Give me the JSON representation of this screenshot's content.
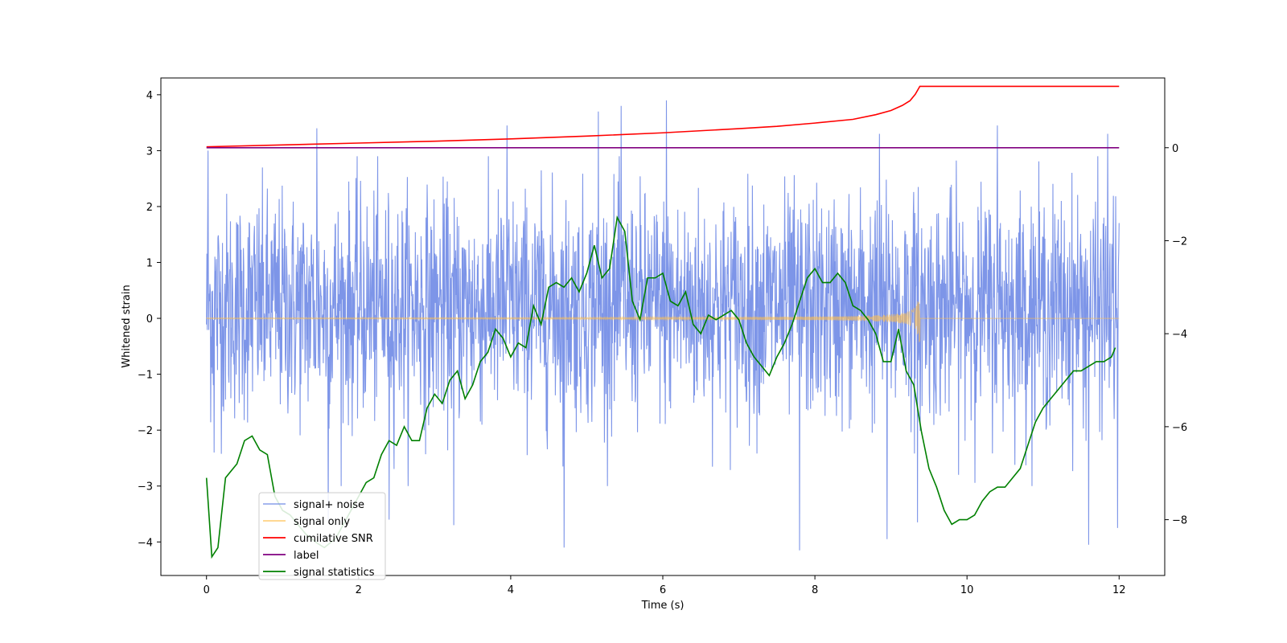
{
  "chart_data": {
    "type": "line",
    "title": "",
    "xlabel": "Time (s)",
    "ylabel": "Whitened strain",
    "y2label": "",
    "xlim": [
      -0.6,
      12.6
    ],
    "ylim": [
      -4.6,
      4.3
    ],
    "y2lim": [
      -9.2,
      1.5
    ],
    "x_ticks": [
      0,
      2,
      4,
      6,
      8,
      10,
      12
    ],
    "y_ticks": [
      -4,
      -3,
      -2,
      -1,
      0,
      1,
      2,
      3,
      4
    ],
    "y2_ticks": [
      -8,
      -6,
      -4,
      -2,
      0
    ],
    "legend_position": "lower-left",
    "grid": false,
    "series": [
      {
        "name": "signal+ noise",
        "axis": "left",
        "color": "#6f8ae6",
        "style": "dense noise, approx. range -4.2 to 3.9",
        "t_range": [
          0,
          12
        ],
        "peaks": [
          [
            0.02,
            3.0
          ],
          [
            1.45,
            3.4
          ],
          [
            3.25,
            3.75
          ],
          [
            3.95,
            3.45
          ],
          [
            5.15,
            3.7
          ],
          [
            5.45,
            3.8
          ],
          [
            6.05,
            3.9
          ],
          [
            8.85,
            3.3
          ],
          [
            10.4,
            3.45
          ],
          [
            11.85,
            3.3
          ]
        ],
        "troughs": [
          [
            0.1,
            -2.4
          ],
          [
            1.6,
            -3.6
          ],
          [
            2.4,
            -3.6
          ],
          [
            3.25,
            -3.7
          ],
          [
            4.7,
            -4.1
          ],
          [
            7.8,
            -4.15
          ],
          [
            8.95,
            -3.95
          ],
          [
            9.35,
            -3.65
          ],
          [
            11.6,
            -4.05
          ],
          [
            11.98,
            -3.75
          ]
        ]
      },
      {
        "name": "signal only",
        "axis": "left",
        "color": "#ffc04d",
        "style": "chirp, zero until ~8.5 s, grows to ±0.7 at 9.38 s, then zero",
        "chirp_end": 9.38,
        "chirp_peak_amplitude": 0.7
      },
      {
        "name": "cumilative SNR",
        "axis": "right",
        "color": "#ff0000",
        "x": [
          0,
          1,
          2,
          3,
          4,
          5,
          6,
          7,
          7.5,
          8,
          8.5,
          8.8,
          9.0,
          9.15,
          9.25,
          9.32,
          9.38,
          10,
          11,
          12
        ],
        "values": [
          0.02,
          0.06,
          0.1,
          0.14,
          0.19,
          0.25,
          0.32,
          0.41,
          0.46,
          0.53,
          0.61,
          0.71,
          0.8,
          0.91,
          1.01,
          1.15,
          1.32,
          1.32,
          1.32,
          1.32
        ]
      },
      {
        "name": "label",
        "axis": "right",
        "color": "#800080",
        "x": [
          0,
          12
        ],
        "values": [
          0,
          0
        ]
      },
      {
        "name": "signal statistics",
        "axis": "right",
        "color": "#008000",
        "x": [
          0,
          0.07,
          0.15,
          0.25,
          0.4,
          0.5,
          0.6,
          0.7,
          0.8,
          0.9,
          1.0,
          1.1,
          1.2,
          1.3,
          1.45,
          1.55,
          1.7,
          1.8,
          1.9,
          2.0,
          2.1,
          2.2,
          2.3,
          2.4,
          2.5,
          2.6,
          2.7,
          2.8,
          2.9,
          3.0,
          3.1,
          3.2,
          3.3,
          3.4,
          3.5,
          3.6,
          3.7,
          3.8,
          3.9,
          4.0,
          4.1,
          4.2,
          4.3,
          4.4,
          4.5,
          4.6,
          4.7,
          4.8,
          4.9,
          5.0,
          5.1,
          5.2,
          5.3,
          5.4,
          5.5,
          5.6,
          5.7,
          5.8,
          5.9,
          6.0,
          6.1,
          6.2,
          6.3,
          6.4,
          6.5,
          6.6,
          6.7,
          6.8,
          6.9,
          7.0,
          7.1,
          7.2,
          7.3,
          7.4,
          7.5,
          7.6,
          7.7,
          7.8,
          7.9,
          8.0,
          8.1,
          8.2,
          8.3,
          8.4,
          8.5,
          8.6,
          8.7,
          8.8,
          8.9,
          9.0,
          9.1,
          9.2,
          9.3,
          9.4,
          9.5,
          9.6,
          9.7,
          9.8,
          9.9,
          10.0,
          10.1,
          10.2,
          10.3,
          10.4,
          10.5,
          10.6,
          10.7,
          10.8,
          10.9,
          11.0,
          11.1,
          11.2,
          11.3,
          11.4,
          11.5,
          11.6,
          11.7,
          11.8,
          11.9,
          11.95
        ],
        "values": [
          -7.1,
          -8.8,
          -8.6,
          -7.1,
          -6.8,
          -6.3,
          -6.2,
          -6.5,
          -6.6,
          -7.5,
          -7.8,
          -7.9,
          -8.1,
          -8.3,
          -8.5,
          -8.6,
          -8.4,
          -8.1,
          -7.8,
          -7.5,
          -7.2,
          -7.1,
          -6.6,
          -6.3,
          -6.4,
          -6.0,
          -6.3,
          -6.3,
          -5.6,
          -5.3,
          -5.5,
          -5.0,
          -4.8,
          -5.4,
          -5.1,
          -4.6,
          -4.4,
          -3.9,
          -4.1,
          -4.5,
          -4.2,
          -4.3,
          -3.4,
          -3.8,
          -3.0,
          -2.9,
          -3.0,
          -2.8,
          -3.1,
          -2.7,
          -2.1,
          -2.8,
          -2.6,
          -1.5,
          -1.8,
          -3.3,
          -3.7,
          -2.8,
          -2.8,
          -2.7,
          -3.3,
          -3.4,
          -3.1,
          -3.8,
          -4.0,
          -3.6,
          -3.7,
          -3.6,
          -3.5,
          -3.7,
          -4.2,
          -4.5,
          -4.7,
          -4.9,
          -4.5,
          -4.2,
          -3.8,
          -3.3,
          -2.8,
          -2.6,
          -2.9,
          -2.9,
          -2.7,
          -2.9,
          -3.4,
          -3.5,
          -3.7,
          -4.0,
          -4.6,
          -4.6,
          -3.9,
          -4.8,
          -5.1,
          -6.1,
          -6.9,
          -7.3,
          -7.8,
          -8.1,
          -8.0,
          -8.0,
          -7.9,
          -7.6,
          -7.4,
          -7.3,
          -7.3,
          -7.1,
          -6.9,
          -6.4,
          -5.9,
          -5.6,
          -5.4,
          -5.2,
          -5.0,
          -4.8,
          -4.8,
          -4.7,
          -4.6,
          -4.6,
          -4.5,
          -4.3
        ]
      }
    ]
  }
}
